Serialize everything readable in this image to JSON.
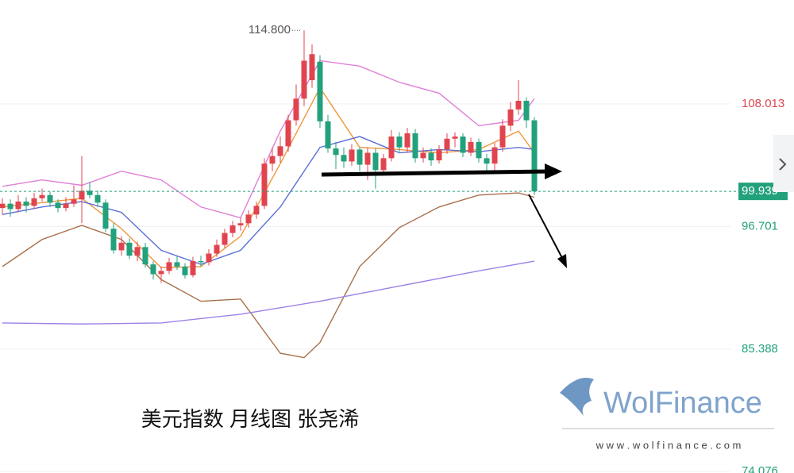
{
  "chart_data": {
    "type": "candlestick",
    "title": "美元指数 月线图 张尧浠",
    "watermark": "WolFinance",
    "watermark_url": "w w w . w o l f i n a n c e . c o m",
    "ylim": [
      73.95,
      117.6
    ],
    "yticks": [
      108.013,
      96.701,
      85.388,
      74.076
    ],
    "grid": true,
    "up_color": "#e0454f",
    "down_color": "#22a17c",
    "high_annotation": {
      "value": 114.8,
      "label": "114.800"
    },
    "last_price": {
      "value": 99.939,
      "label": "99.939"
    },
    "candles": [
      [
        98.4,
        99.3,
        97.8,
        98.8
      ],
      [
        98.8,
        99.2,
        97.6,
        98.3
      ],
      [
        98.3,
        99.6,
        98.0,
        99.0
      ],
      [
        99.0,
        99.4,
        98.0,
        98.6
      ],
      [
        98.6,
        99.8,
        98.3,
        99.3
      ],
      [
        99.3,
        100.2,
        99.0,
        99.6
      ],
      [
        99.6,
        99.9,
        98.5,
        98.9
      ],
      [
        98.9,
        99.2,
        98.0,
        98.4
      ],
      [
        98.4,
        99.4,
        98.1,
        98.8
      ],
      [
        98.8,
        100.5,
        98.5,
        99.2
      ],
      [
        99.2,
        103.2,
        97.0,
        100.0
      ],
      [
        100.0,
        100.8,
        99.3,
        99.6
      ],
      [
        99.6,
        100.0,
        98.5,
        98.9
      ],
      [
        98.9,
        99.2,
        96.2,
        96.5
      ],
      [
        96.5,
        97.0,
        94.2,
        94.5
      ],
      [
        94.5,
        95.8,
        94.0,
        95.2
      ],
      [
        95.2,
        95.6,
        93.7,
        94.0
      ],
      [
        94.0,
        95.3,
        93.5,
        94.8
      ],
      [
        94.8,
        95.2,
        92.9,
        93.2
      ],
      [
        93.2,
        93.5,
        91.8,
        92.3
      ],
      [
        92.3,
        93.0,
        91.5,
        92.6
      ],
      [
        92.6,
        93.8,
        92.3,
        93.4
      ],
      [
        93.4,
        94.0,
        92.7,
        93.0
      ],
      [
        93.0,
        93.3,
        91.9,
        92.2
      ],
      [
        92.2,
        93.9,
        92.0,
        93.5
      ],
      [
        93.5,
        94.0,
        93.0,
        93.4
      ],
      [
        93.4,
        94.6,
        93.1,
        94.2
      ],
      [
        94.2,
        95.5,
        93.9,
        95.0
      ],
      [
        95.0,
        96.5,
        94.7,
        96.1
      ],
      [
        96.1,
        97.2,
        95.7,
        96.8
      ],
      [
        96.8,
        97.5,
        96.3,
        97.0
      ],
      [
        97.0,
        98.2,
        96.6,
        97.8
      ],
      [
        97.8,
        99.0,
        97.4,
        98.6
      ],
      [
        98.6,
        103.0,
        98.3,
        102.5
      ],
      [
        102.5,
        104.0,
        101.8,
        103.2
      ],
      [
        103.2,
        105.0,
        102.6,
        104.1
      ],
      [
        104.1,
        107.0,
        103.6,
        106.5
      ],
      [
        106.5,
        109.8,
        106.0,
        108.5
      ],
      [
        108.5,
        114.8,
        107.8,
        112.0
      ],
      [
        110.2,
        113.5,
        109.5,
        112.6
      ],
      [
        111.9,
        112.5,
        105.8,
        106.4
      ],
      [
        106.4,
        107.0,
        103.5,
        103.9
      ],
      [
        103.9,
        104.5,
        102.0,
        103.3
      ],
      [
        103.3,
        104.0,
        102.1,
        102.7
      ],
      [
        102.7,
        104.3,
        102.3,
        103.8
      ],
      [
        103.8,
        104.0,
        101.8,
        102.4
      ],
      [
        102.4,
        104.0,
        101.0,
        103.5
      ],
      [
        103.5,
        103.9,
        100.2,
        101.9
      ],
      [
        101.9,
        103.4,
        101.5,
        103.0
      ],
      [
        103.0,
        105.6,
        102.7,
        105.0
      ],
      [
        105.0,
        105.4,
        103.6,
        104.0
      ],
      [
        104.0,
        105.8,
        103.5,
        105.3
      ],
      [
        105.3,
        105.7,
        102.6,
        103.0
      ],
      [
        103.0,
        104.0,
        102.6,
        103.5
      ],
      [
        103.5,
        103.9,
        102.3,
        102.8
      ],
      [
        102.8,
        104.2,
        102.5,
        103.8
      ],
      [
        103.8,
        105.3,
        103.4,
        104.8
      ],
      [
        104.8,
        105.4,
        104.0,
        105.0
      ],
      [
        105.0,
        105.3,
        103.1,
        103.5
      ],
      [
        103.5,
        104.9,
        103.2,
        104.5
      ],
      [
        104.5,
        104.8,
        102.6,
        103.0
      ],
      [
        103.0,
        103.4,
        101.6,
        102.5
      ],
      [
        102.5,
        104.4,
        101.8,
        104.0
      ],
      [
        104.0,
        106.6,
        103.6,
        106.0
      ],
      [
        106.0,
        108.2,
        105.5,
        107.5
      ],
      [
        107.5,
        110.2,
        107.0,
        108.3
      ],
      [
        108.3,
        108.6,
        105.8,
        106.5
      ],
      [
        106.5,
        106.8,
        99.6,
        99.939
      ]
    ],
    "series": [
      {
        "color": "#f0963a",
        "x": [
          0,
          5,
          10,
          15,
          20,
          25,
          30,
          35,
          40,
          45,
          50,
          55,
          60,
          65,
          67
        ],
        "values": [
          98.5,
          98.9,
          99.3,
          96.5,
          92.9,
          93.0,
          95.8,
          102.5,
          109.5,
          104.0,
          103.8,
          103.5,
          103.8,
          105.5,
          103.5
        ]
      },
      {
        "color": "#5c6fd6",
        "x": [
          0,
          5,
          10,
          15,
          20,
          25,
          30,
          35,
          40,
          45,
          50,
          55,
          60,
          65,
          67
        ],
        "values": [
          97.8,
          98.5,
          99.0,
          98.0,
          94.5,
          93.2,
          94.5,
          98.5,
          104.0,
          105.0,
          103.5,
          103.8,
          103.6,
          104.0,
          103.8
        ]
      },
      {
        "color": "#e07fd6",
        "x": [
          0,
          5,
          10,
          15,
          20,
          25,
          30,
          35,
          40,
          45,
          50,
          55,
          60,
          65,
          67
        ],
        "values": [
          100.4,
          101.0,
          100.5,
          101.8,
          101.0,
          98.5,
          97.5,
          105.5,
          112.0,
          111.5,
          110.0,
          109.0,
          106.0,
          106.5,
          108.5
        ]
      },
      {
        "color": "#a8704a",
        "x": [
          0,
          5,
          10,
          15,
          20,
          25,
          30,
          35,
          38,
          40,
          45,
          50,
          55,
          60,
          65,
          67
        ],
        "values": [
          93.0,
          95.5,
          96.8,
          95.5,
          91.8,
          89.8,
          90.0,
          85.0,
          84.6,
          86.0,
          93.0,
          96.6,
          98.5,
          99.6,
          99.8,
          99.4
        ]
      },
      {
        "color": "#9c82e6",
        "x": [
          0,
          10,
          20,
          30,
          40,
          50,
          60,
          67
        ],
        "values": [
          87.8,
          87.7,
          87.8,
          88.6,
          89.8,
          91.2,
          92.6,
          93.5
        ]
      }
    ]
  }
}
